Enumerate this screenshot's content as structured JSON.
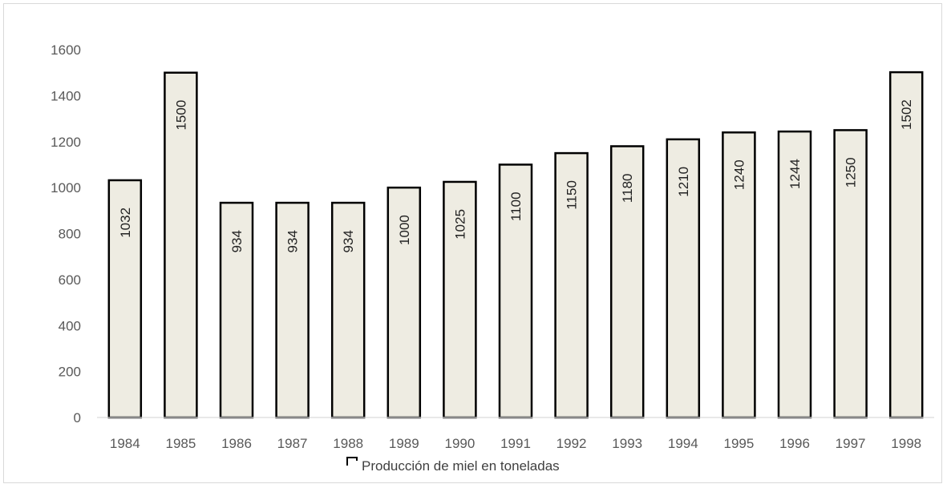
{
  "chart_data": {
    "type": "bar",
    "categories": [
      "1984",
      "1985",
      "1986",
      "1987",
      "1988",
      "1989",
      "1990",
      "1991",
      "1992",
      "1993",
      "1994",
      "1995",
      "1996",
      "1997",
      "1998"
    ],
    "series": [
      {
        "name": "Producción de miel en toneladas",
        "values": [
          1032,
          1500,
          934,
          934,
          934,
          1000,
          1025,
          1100,
          1150,
          1180,
          1210,
          1240,
          1244,
          1250,
          1502
        ],
        "fill": "#eeece2",
        "stroke": "#000000"
      }
    ],
    "data_labels": [
      "1032",
      "1500",
      "934",
      "934",
      "934",
      "1000",
      "1025",
      "1100",
      "1150",
      "1180",
      "1210",
      "1240",
      "1244",
      "1250",
      "1502"
    ],
    "yticks": [
      "0",
      "200",
      "400",
      "600",
      "800",
      "1000",
      "1200",
      "1400",
      "1600"
    ],
    "ylim": [
      0,
      1600
    ],
    "grid": false,
    "legend": "bottom",
    "colors": {
      "bar_fill": "#eeece2",
      "bar_outline": "#000000",
      "axis": "#d9d9d9",
      "tick_text": "#595959"
    }
  }
}
